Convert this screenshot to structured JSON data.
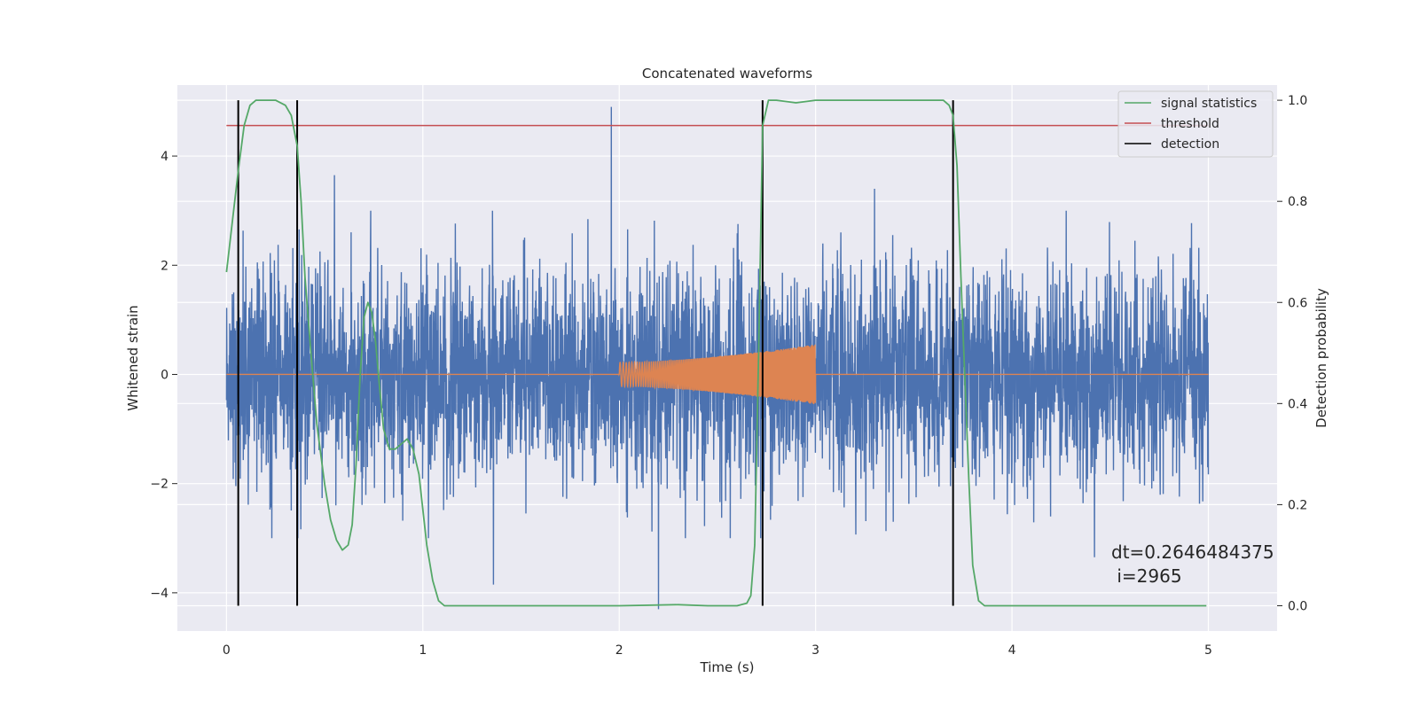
{
  "chart_data": {
    "type": "line",
    "title": "Concatenated waveforms",
    "xlabel": "Time (s)",
    "ylabel": "Whitened strain",
    "ylabel_right": "Detection probability",
    "xlim": [
      -0.25,
      5.35
    ],
    "ylim": [
      -4.7,
      5.3
    ],
    "ylim_right": [
      -0.05,
      1.03
    ],
    "x_ticks": [
      0,
      1,
      2,
      3,
      4,
      5
    ],
    "y_ticks": [
      -4,
      -2,
      0,
      2,
      4
    ],
    "y_ticks_right": [
      0.0,
      0.2,
      0.4,
      0.6,
      0.8,
      1.0
    ],
    "grid": true,
    "legend_position": "top-right",
    "legend": [
      {
        "label": "signal statistics",
        "color": "#55a868"
      },
      {
        "label": "threshold",
        "color": "#c44e52"
      },
      {
        "label": "detection",
        "color": "#000000"
      }
    ],
    "colors": {
      "strain": "#4c72b0",
      "injection": "#dd8452",
      "statistics": "#55a868",
      "threshold": "#c44e52",
      "detection": "#000000",
      "background": "#eaeaf2",
      "grid": "#ffffff"
    },
    "series": [
      {
        "name": "signal statistics",
        "axis": "right",
        "x": [
          0,
          0.03,
          0.06,
          0.09,
          0.12,
          0.15,
          0.2,
          0.25,
          0.3,
          0.33,
          0.36,
          0.38,
          0.4,
          0.43,
          0.46,
          0.5,
          0.53,
          0.56,
          0.59,
          0.62,
          0.64,
          0.66,
          0.68,
          0.7,
          0.72,
          0.74,
          0.76,
          0.78,
          0.8,
          0.83,
          0.86,
          0.89,
          0.92,
          0.95,
          0.98,
          1.0,
          1.02,
          1.05,
          1.08,
          1.11,
          1.15,
          1.25,
          1.5,
          2.0,
          2.3,
          2.45,
          2.6,
          2.65,
          2.67,
          2.69,
          2.71,
          2.73,
          2.76,
          2.8,
          2.9,
          3.0,
          3.3,
          3.65,
          3.68,
          3.7,
          3.72,
          3.74,
          3.76,
          3.78,
          3.8,
          3.83,
          3.86,
          4.0,
          4.5,
          4.99
        ],
        "y": [
          0.66,
          0.76,
          0.86,
          0.95,
          0.99,
          1.0,
          1.0,
          1.0,
          0.99,
          0.97,
          0.91,
          0.8,
          0.65,
          0.5,
          0.36,
          0.24,
          0.17,
          0.13,
          0.11,
          0.12,
          0.16,
          0.28,
          0.45,
          0.57,
          0.6,
          0.58,
          0.52,
          0.43,
          0.35,
          0.31,
          0.31,
          0.32,
          0.33,
          0.31,
          0.26,
          0.19,
          0.12,
          0.05,
          0.01,
          0.0,
          0.0,
          0.0,
          0.0,
          0.0,
          0.002,
          0.0,
          0.0,
          0.005,
          0.02,
          0.12,
          0.5,
          0.95,
          1.0,
          1.0,
          0.995,
          1.0,
          1.0,
          1.0,
          0.99,
          0.97,
          0.87,
          0.65,
          0.45,
          0.25,
          0.08,
          0.01,
          0.0,
          0.0,
          0.0,
          0.0
        ]
      },
      {
        "name": "threshold",
        "axis": "right",
        "x": [
          0,
          5
        ],
        "y": [
          0.95,
          0.95
        ]
      },
      {
        "name": "detection",
        "axis": "right",
        "x": [
          0.06,
          0.36,
          2.73,
          3.7
        ],
        "y_range": [
          0.0,
          1.0
        ]
      }
    ],
    "strain_noise": {
      "axis": "left",
      "x_range": [
        0,
        5
      ],
      "typical_amplitude": 1.2,
      "spikes": [
        {
          "x": 1.96,
          "y": 4.9
        },
        {
          "x": 0.55,
          "y": 3.65
        },
        {
          "x": 3.3,
          "y": 3.4
        },
        {
          "x": 2.2,
          "y": -4.3
        },
        {
          "x": 1.36,
          "y": -3.85
        },
        {
          "x": 4.42,
          "y": -3.35
        }
      ]
    },
    "injection": {
      "axis": "left",
      "x_range": [
        2.0,
        3.0
      ],
      "amplitude_start": 0.22,
      "amplitude_end": 0.55,
      "baseline": 0
    },
    "annotation": "dt=0.2646484375\n i=2965"
  }
}
